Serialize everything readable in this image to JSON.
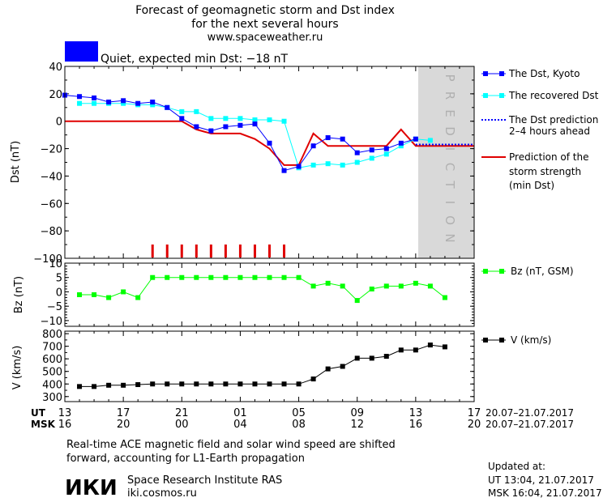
{
  "header": {
    "title_lines": [
      "Forecast of geomagnetic storm and Dst index",
      "for the next several hours",
      "www.spaceweather.ru"
    ],
    "status_color": "#0000ff",
    "status_text": "Quiet, expected min Dst: −18 nT"
  },
  "colors": {
    "dst_kyoto": "#0000ff",
    "dst_recovered": "#00ffff",
    "dst_prediction_2_4h": "#0000ff",
    "storm_strength": "#e00000",
    "bz": "#00ff00",
    "v": "#000000",
    "prediction_band": "#d9d9d9",
    "storm_marks": "#e00000"
  },
  "panels": {
    "dst": {
      "ylabel": "Dst (nT)",
      "ylim": [
        -100,
        40
      ],
      "yticks": [
        40,
        20,
        0,
        -20,
        -40,
        -60,
        -80,
        -100
      ],
      "prediction_label": "PREDICTION"
    },
    "bz": {
      "ylabel": "Bz (nT)",
      "ylim": [
        -12,
        10
      ],
      "yticks": [
        10,
        5,
        0,
        -5,
        -10
      ]
    },
    "v": {
      "ylabel": "V (km/s)",
      "ylim": [
        260,
        820
      ],
      "yticks": [
        800,
        700,
        600,
        500,
        400,
        300
      ]
    }
  },
  "legend": {
    "dst_kyoto": "The Dst, Kyoto",
    "dst_recovered": "The recovered Dst",
    "dst_prediction": [
      "The Dst prediction",
      "2–4 hours ahead"
    ],
    "storm_strength": [
      "Prediction of the",
      "storm strength",
      "(min Dst)"
    ],
    "bz": "Bz (nT, GSM)",
    "v": "V (km/s)"
  },
  "time_axis": {
    "ut_label": "UT",
    "msk_label": "MSK",
    "ut_ticks": [
      "13",
      "17",
      "21",
      "01",
      "05",
      "09",
      "13",
      "17"
    ],
    "msk_ticks": [
      "16",
      "20",
      "00",
      "04",
      "08",
      "12",
      "16",
      "20"
    ],
    "date_range_ut": "20.07–21.07.2017",
    "date_range_msk": "20.07–21.07.2017"
  },
  "footer": {
    "note_lines": [
      "Real-time ACE magnetic field and solar wind speed are shifted",
      "forward, accounting for L1-Earth propagation"
    ],
    "logo_text": "ИКИ",
    "institute": "Space Research Institute RAS",
    "site": "iki.cosmos.ru",
    "updated_label": "Updated at:",
    "updated_ut": "UT   13:04, 21.07.2017",
    "updated_msk": "MSK 16:04, 21.07.2017"
  },
  "chart_data": [
    {
      "type": "line",
      "panel": "dst",
      "x_unit": "hours since 13 UT 20.07.2017",
      "xlim": [
        0,
        28
      ],
      "prediction_start": 24,
      "series": [
        {
          "name": "The Dst, Kyoto",
          "x": [
            0,
            1,
            2,
            3,
            4,
            5,
            6,
            7,
            8,
            9,
            10,
            11,
            12,
            13,
            14,
            15,
            16,
            17,
            18,
            19,
            20,
            21,
            22,
            23,
            24
          ],
          "y": [
            19,
            18,
            17,
            14,
            15,
            13,
            14,
            10,
            2,
            -4,
            -7,
            -4,
            -3,
            -2,
            -16,
            -36,
            -33,
            -18,
            -12,
            -13,
            -23,
            -21,
            -20,
            -16,
            -13
          ]
        },
        {
          "name": "The recovered Dst",
          "x": [
            1,
            2,
            3,
            4,
            5,
            6,
            7,
            8,
            9,
            10,
            11,
            12,
            13,
            14,
            15,
            16,
            17,
            18,
            19,
            20,
            21,
            22,
            23,
            24,
            25
          ],
          "y": [
            13,
            13,
            13,
            13,
            12,
            12,
            10,
            7,
            7,
            2,
            2,
            2,
            1,
            1,
            0,
            -34,
            -32,
            -31,
            -32,
            -30,
            -27,
            -24,
            -18,
            -13,
            -14
          ]
        },
        {
          "name": "The Dst prediction 2–4 hours ahead",
          "x": [
            24,
            28
          ],
          "y": [
            -17,
            -17
          ]
        },
        {
          "name": "Prediction of the storm strength (min Dst)",
          "x": [
            0,
            7,
            8,
            9,
            10,
            11,
            12,
            13,
            14,
            15,
            16,
            17,
            18,
            19,
            20,
            21,
            22,
            23,
            24,
            25,
            26,
            27,
            28
          ],
          "y": [
            0,
            0,
            0,
            -6,
            -9,
            -9,
            -9,
            -13,
            -20,
            -32,
            -32,
            -9,
            -18,
            -18,
            -18,
            -18,
            -18,
            -6,
            -18,
            -18,
            -18,
            -18,
            -18
          ]
        }
      ],
      "storm_marks_x": [
        6,
        7,
        8,
        9,
        10,
        11,
        12,
        13,
        14,
        15
      ]
    },
    {
      "type": "line",
      "panel": "bz",
      "x_unit": "hours since 13 UT 20.07.2017",
      "xlim": [
        0,
        28
      ],
      "series": [
        {
          "name": "Bz (nT, GSM)",
          "x": [
            1,
            2,
            3,
            4,
            5,
            6,
            7,
            8,
            9,
            10,
            11,
            12,
            13,
            14,
            15,
            16,
            17,
            18,
            19,
            20,
            21,
            22,
            23,
            24,
            25,
            26
          ],
          "y": [
            -1,
            -1,
            -2,
            0,
            -2,
            5,
            5,
            5,
            5,
            5,
            5,
            5,
            5,
            5,
            5,
            5,
            2,
            3,
            2,
            -3,
            1,
            2,
            2,
            3,
            2,
            -2
          ]
        }
      ]
    },
    {
      "type": "line",
      "panel": "v",
      "x_unit": "hours since 13 UT 20.07.2017",
      "xlim": [
        0,
        28
      ],
      "series": [
        {
          "name": "V (km/s)",
          "x": [
            1,
            2,
            3,
            4,
            5,
            6,
            7,
            8,
            9,
            10,
            11,
            12,
            13,
            14,
            15,
            16,
            17,
            18,
            19,
            20,
            21,
            22,
            23,
            24,
            25,
            26
          ],
          "y": [
            380,
            380,
            390,
            390,
            395,
            400,
            400,
            400,
            400,
            400,
            400,
            400,
            400,
            400,
            400,
            400,
            440,
            520,
            540,
            605,
            605,
            620,
            670,
            670,
            710,
            695
          ]
        }
      ]
    }
  ]
}
